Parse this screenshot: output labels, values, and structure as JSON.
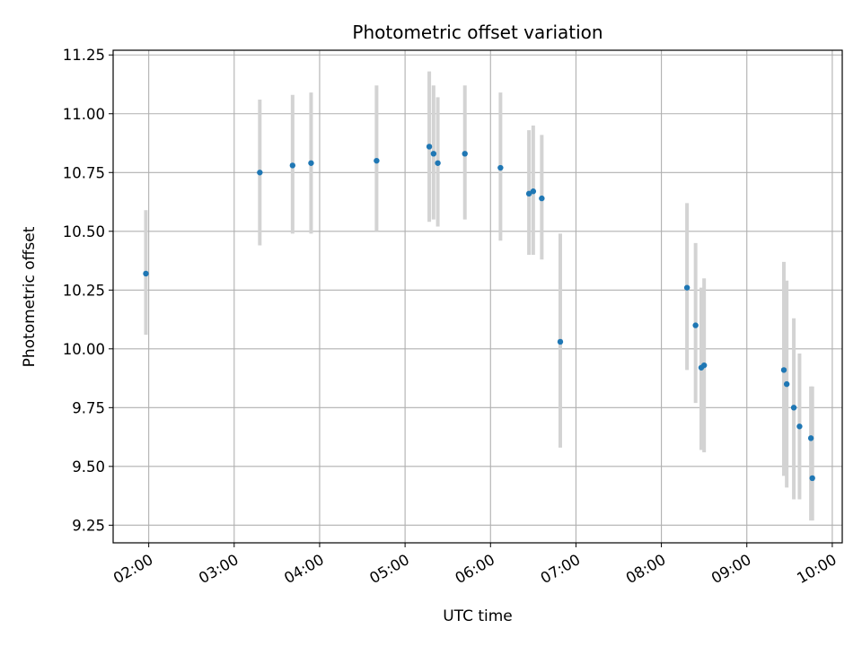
{
  "chart_data": {
    "type": "scatter",
    "title": "Photometric offset variation",
    "xlabel": "UTC time",
    "ylabel": "Photometric offset",
    "xlim": [
      "01:35",
      "10:07"
    ],
    "ylim": [
      9.175,
      11.27
    ],
    "x_ticks": [
      "02:00",
      "03:00",
      "04:00",
      "05:00",
      "06:00",
      "07:00",
      "08:00",
      "09:00",
      "10:00"
    ],
    "y_ticks": [
      9.25,
      9.5,
      9.75,
      10.0,
      10.25,
      10.5,
      10.75,
      11.0,
      11.25
    ],
    "y_tick_labels": [
      "9.25",
      "9.50",
      "9.75",
      "10.00",
      "10.25",
      "10.50",
      "10.75",
      "11.00",
      "11.25"
    ],
    "grid": true,
    "legend": false,
    "colors": {
      "point": "#1f77b4",
      "error_bar": "#d3d3d3",
      "grid": "#b0b0b0"
    },
    "series": [
      {
        "points": [
          {
            "x": "01:58",
            "y": 10.32,
            "ylow": 10.06,
            "yhigh": 10.59
          },
          {
            "x": "03:18",
            "y": 10.75,
            "ylow": 10.44,
            "yhigh": 11.06
          },
          {
            "x": "03:41",
            "y": 10.78,
            "ylow": 10.49,
            "yhigh": 11.08
          },
          {
            "x": "03:54",
            "y": 10.79,
            "ylow": 10.49,
            "yhigh": 11.09
          },
          {
            "x": "04:40",
            "y": 10.8,
            "ylow": 10.5,
            "yhigh": 11.12
          },
          {
            "x": "05:17",
            "y": 10.86,
            "ylow": 10.54,
            "yhigh": 11.18
          },
          {
            "x": "05:20",
            "y": 10.83,
            "ylow": 10.55,
            "yhigh": 11.12
          },
          {
            "x": "05:23",
            "y": 10.79,
            "ylow": 10.52,
            "yhigh": 11.07
          },
          {
            "x": "05:42",
            "y": 10.83,
            "ylow": 10.55,
            "yhigh": 11.12
          },
          {
            "x": "06:07",
            "y": 10.77,
            "ylow": 10.46,
            "yhigh": 11.09
          },
          {
            "x": "06:27",
            "y": 10.66,
            "ylow": 10.4,
            "yhigh": 10.93
          },
          {
            "x": "06:30",
            "y": 10.67,
            "ylow": 10.4,
            "yhigh": 10.95
          },
          {
            "x": "06:36",
            "y": 10.64,
            "ylow": 10.38,
            "yhigh": 10.91
          },
          {
            "x": "06:49",
            "y": 10.03,
            "ylow": 9.58,
            "yhigh": 10.49
          },
          {
            "x": "08:18",
            "y": 10.26,
            "ylow": 9.91,
            "yhigh": 10.62
          },
          {
            "x": "08:24",
            "y": 10.1,
            "ylow": 9.77,
            "yhigh": 10.45
          },
          {
            "x": "08:28",
            "y": 9.92,
            "ylow": 9.57,
            "yhigh": 10.26
          },
          {
            "x": "08:30",
            "y": 9.93,
            "ylow": 9.56,
            "yhigh": 10.3
          },
          {
            "x": "09:26",
            "y": 9.91,
            "ylow": 9.46,
            "yhigh": 10.37
          },
          {
            "x": "09:28",
            "y": 9.85,
            "ylow": 9.41,
            "yhigh": 10.29
          },
          {
            "x": "09:33",
            "y": 9.75,
            "ylow": 9.36,
            "yhigh": 10.13
          },
          {
            "x": "09:37",
            "y": 9.67,
            "ylow": 9.36,
            "yhigh": 9.98
          },
          {
            "x": "09:45",
            "y": 9.62,
            "ylow": 9.27,
            "yhigh": 9.84
          },
          {
            "x": "09:46",
            "y": 9.45,
            "ylow": 9.27,
            "yhigh": 9.84
          }
        ]
      }
    ]
  }
}
